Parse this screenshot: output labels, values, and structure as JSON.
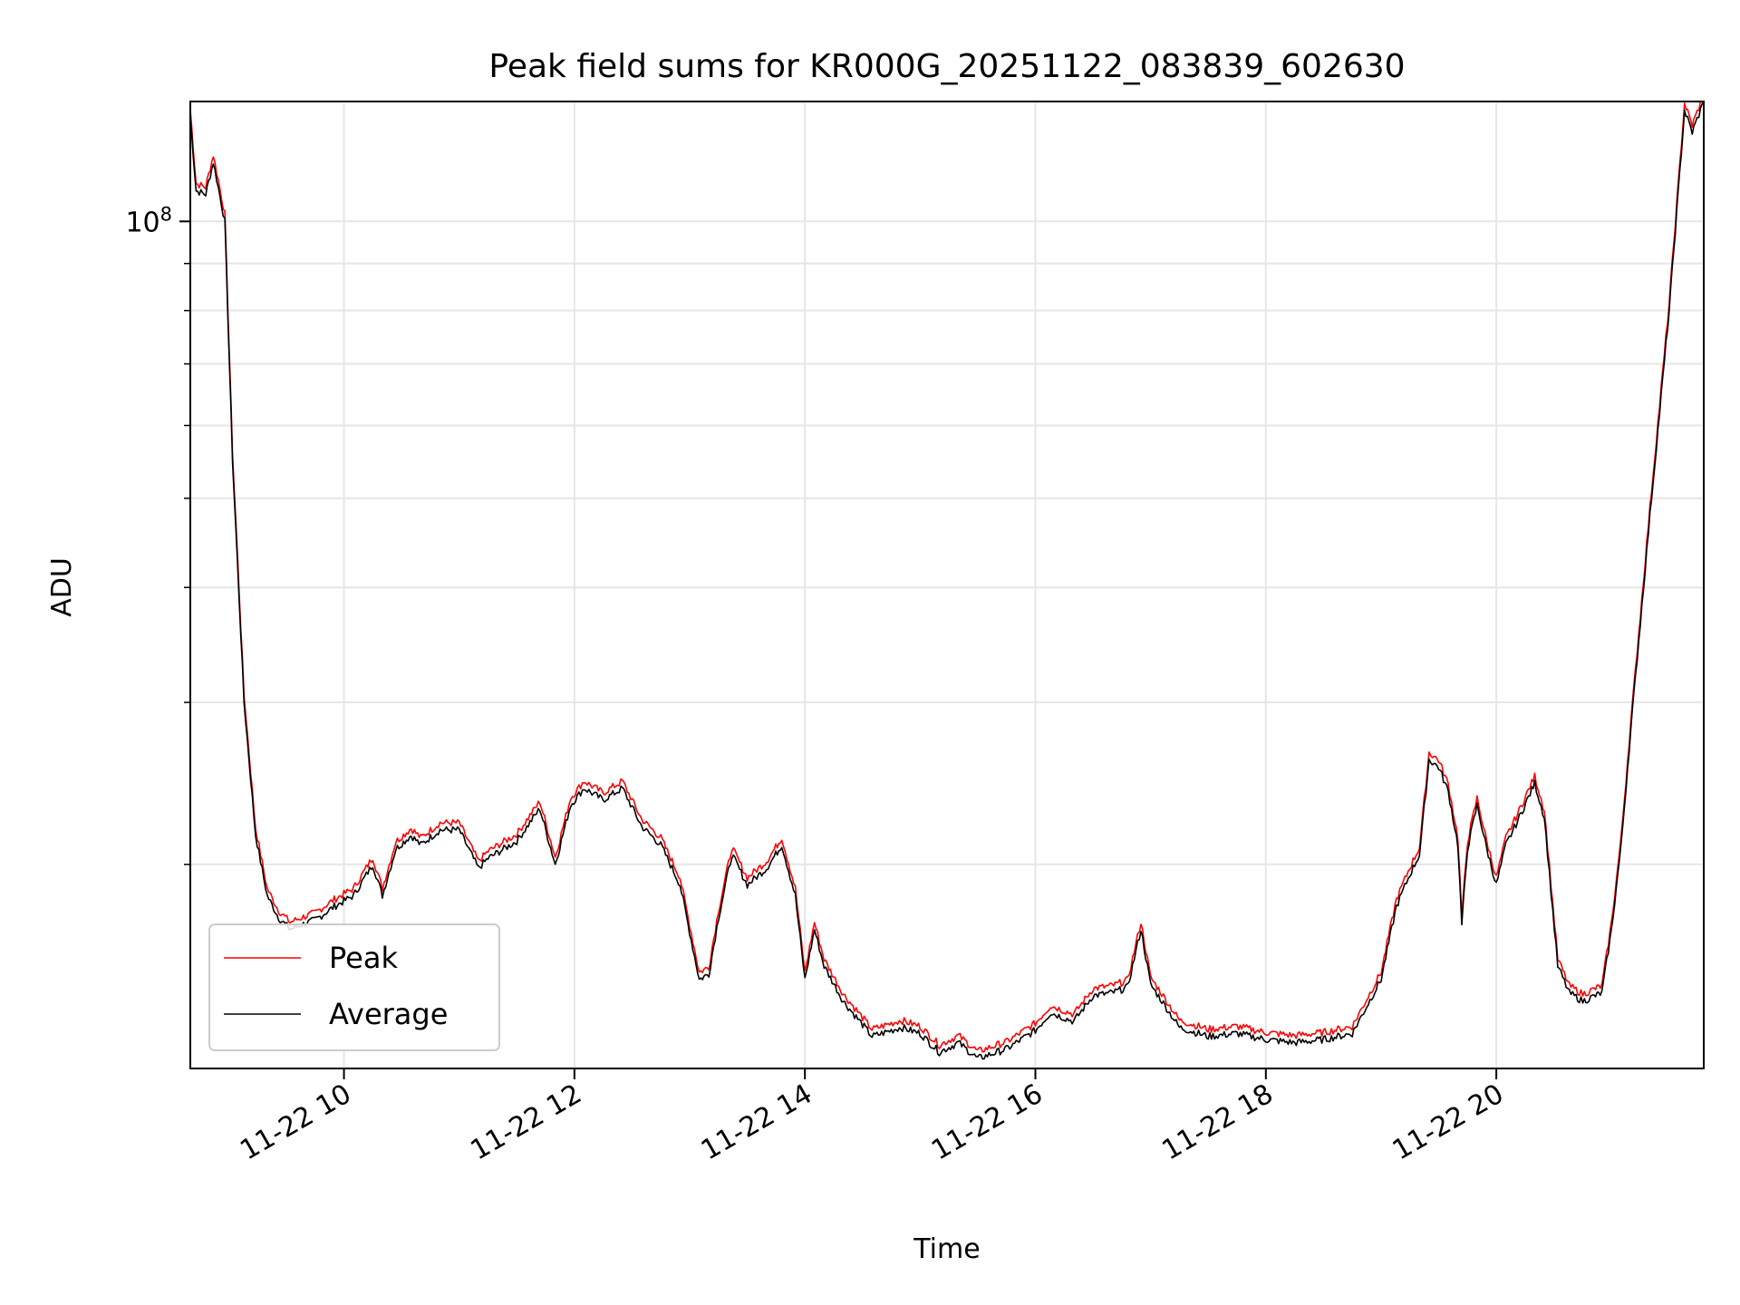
{
  "chart_data": {
    "type": "line",
    "title": "Peak field sums for KR000G_20251122_083839_602630",
    "xlabel": "Time",
    "ylabel": "ADU",
    "x_range": [
      "2025-11-22 08:40",
      "2025-11-22 21:48"
    ],
    "ylim": [
      12000000.0,
      135000000.0
    ],
    "yscale": "log",
    "grid": true,
    "legend_position": "lower-left",
    "x_ticks": [
      "11-22 10",
      "11-22 12",
      "11-22 14",
      "11-22 16",
      "11-22 18",
      "11-22 20"
    ],
    "x_tick_times": [
      "2025-11-22 10:00",
      "2025-11-22 12:00",
      "2025-11-22 14:00",
      "2025-11-22 16:00",
      "2025-11-22 18:00",
      "2025-11-22 20:00"
    ],
    "y_major_tick": {
      "value": 100000000.0,
      "base": "10",
      "exponent": "8"
    },
    "y_minor_ticks": [
      20000000.0,
      30000000.0,
      40000000.0,
      50000000.0,
      60000000.0,
      70000000.0,
      80000000.0,
      90000000.0
    ],
    "series": [
      {
        "name": "Peak",
        "color": "#ff0000"
      },
      {
        "name": "Average",
        "color": "#000000"
      }
    ],
    "x": [
      "2025-11-22 08:40",
      "2025-11-22 08:43",
      "2025-11-22 08:48",
      "2025-11-22 08:52",
      "2025-11-22 08:58",
      "2025-11-22 09:02",
      "2025-11-22 09:08",
      "2025-11-22 09:14",
      "2025-11-22 09:20",
      "2025-11-22 09:26",
      "2025-11-22 09:32",
      "2025-11-22 09:38",
      "2025-11-22 09:45",
      "2025-11-22 09:55",
      "2025-11-22 10:05",
      "2025-11-22 10:15",
      "2025-11-22 10:20",
      "2025-11-22 10:27",
      "2025-11-22 10:35",
      "2025-11-22 10:40",
      "2025-11-22 10:50",
      "2025-11-22 11:00",
      "2025-11-22 11:10",
      "2025-11-22 11:15",
      "2025-11-22 11:30",
      "2025-11-22 11:42",
      "2025-11-22 11:50",
      "2025-11-22 11:58",
      "2025-11-22 12:05",
      "2025-11-22 12:15",
      "2025-11-22 12:25",
      "2025-11-22 12:35",
      "2025-11-22 12:45",
      "2025-11-22 12:55",
      "2025-11-22 13:05",
      "2025-11-22 13:10",
      "2025-11-22 13:15",
      "2025-11-22 13:22",
      "2025-11-22 13:30",
      "2025-11-22 13:40",
      "2025-11-22 13:48",
      "2025-11-22 13:55",
      "2025-11-22 14:00",
      "2025-11-22 14:05",
      "2025-11-22 14:10",
      "2025-11-22 14:20",
      "2025-11-22 14:35",
      "2025-11-22 14:50",
      "2025-11-22 15:00",
      "2025-11-22 15:10",
      "2025-11-22 15:20",
      "2025-11-22 15:30",
      "2025-11-22 15:45",
      "2025-11-22 16:00",
      "2025-11-22 16:08",
      "2025-11-22 16:20",
      "2025-11-22 16:30",
      "2025-11-22 16:40",
      "2025-11-22 16:48",
      "2025-11-22 16:55",
      "2025-11-22 17:00",
      "2025-11-22 17:05",
      "2025-11-22 17:15",
      "2025-11-22 17:30",
      "2025-11-22 17:45",
      "2025-11-22 18:00",
      "2025-11-22 18:15",
      "2025-11-22 18:30",
      "2025-11-22 18:45",
      "2025-11-22 19:00",
      "2025-11-22 19:08",
      "2025-11-22 19:15",
      "2025-11-22 19:20",
      "2025-11-22 19:25",
      "2025-11-22 19:30",
      "2025-11-22 19:35",
      "2025-11-22 19:40",
      "2025-11-22 19:42",
      "2025-11-22 19:45",
      "2025-11-22 19:50",
      "2025-11-22 19:55",
      "2025-11-22 20:00",
      "2025-11-22 20:05",
      "2025-11-22 20:12",
      "2025-11-22 20:20",
      "2025-11-22 20:25",
      "2025-11-22 20:32",
      "2025-11-22 20:38",
      "2025-11-22 20:45",
      "2025-11-22 20:55",
      "2025-11-22 21:00",
      "2025-11-22 21:05",
      "2025-11-22 21:10",
      "2025-11-22 21:20",
      "2025-11-22 21:30",
      "2025-11-22 21:38",
      "2025-11-22 21:42",
      "2025-11-22 21:48"
    ],
    "values": [
      130000000.0,
      108000000.0,
      107000000.0,
      116000000.0,
      100000000.0,
      55000000.0,
      30000000.0,
      21500000.0,
      18500000.0,
      17500000.0,
      17000000.0,
      17200000.0,
      17400000.0,
      18000000.0,
      18500000.0,
      20000000.0,
      18500000.0,
      20800000.0,
      21500000.0,
      21000000.0,
      21800000.0,
      21800000.0,
      19800000.0,
      20300000.0,
      21200000.0,
      23000000.0,
      20000000.0,
      23200000.0,
      24200000.0,
      23500000.0,
      24200000.0,
      22000000.0,
      21000000.0,
      19000000.0,
      15000000.0,
      15200000.0,
      17500000.0,
      20500000.0,
      19000000.0,
      19800000.0,
      21000000.0,
      18500000.0,
      15000000.0,
      17000000.0,
      15500000.0,
      14200000.0,
      13000000.0,
      13300000.0,
      13100000.0,
      12500000.0,
      12800000.0,
      12300000.0,
      12600000.0,
      13200000.0,
      13800000.0,
      13500000.0,
      14400000.0,
      14500000.0,
      14700000.0,
      17000000.0,
      14800000.0,
      14300000.0,
      13300000.0,
      13000000.0,
      13100000.0,
      12900000.0,
      12800000.0,
      12900000.0,
      13100000.0,
      15000000.0,
      18000000.0,
      19500000.0,
      20500000.0,
      26000000.0,
      25500000.0,
      24000000.0,
      21000000.0,
      17200000.0,
      20800000.0,
      23200000.0,
      20800000.0,
      19000000.0,
      21000000.0,
      22500000.0,
      24500000.0,
      22500000.0,
      15500000.0,
      14500000.0,
      14200000.0,
      14500000.0,
      17000000.0,
      21000000.0,
      28000000.0,
      48000000.0,
      80000000.0,
      132000000.0,
      125000000.0,
      135000000.0
    ]
  },
  "legend": {
    "peak_label": "Peak",
    "average_label": "Average"
  }
}
